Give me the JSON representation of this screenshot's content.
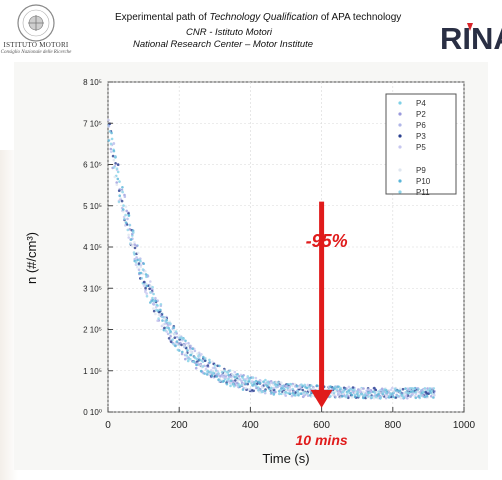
{
  "header": {
    "left_logo_text": "ISTITUTO MOTORI",
    "left_logo_subtext": "Consiglio Nazionale delle Ricerche",
    "title_prefix": "Experimental path of ",
    "title_italic": "Technology Qualification",
    "title_suffix": " of APA technology",
    "line2": "CNR - Istituto Motori",
    "line3": "National Research Center – Motor Institute",
    "right_logo": "RINA",
    "brand_red": "#d8242a"
  },
  "chart_data": {
    "type": "scatter",
    "xlabel": "Time (s)",
    "ylabel": "n (#/cm³)",
    "xlim": [
      0,
      1000
    ],
    "ylim": [
      0,
      8
    ],
    "y_scale_note": "×10⁵ scale shown by ticks",
    "x_ticks": [
      "0",
      "200",
      "400",
      "600",
      "800",
      "1000"
    ],
    "y_ticks": [
      "0 10⁰",
      "1 10⁵",
      "2 10⁵",
      "3 10⁵",
      "4 10⁵",
      "5 10⁵",
      "6 10⁵",
      "7 10⁵",
      "8 10⁵"
    ],
    "legend": [
      "P4",
      "P2",
      "P6",
      "P3",
      "P5",
      "P9",
      "P10",
      "P11"
    ],
    "legend_position": "top-right",
    "series_colors": [
      "#7fd0e6",
      "#9a9adc",
      "#b0b6e8",
      "#2a3f8f",
      "#c7c7ef",
      "#dfe6f0",
      "#5ab5d8",
      "#8fd3e8"
    ],
    "decay_model": {
      "y0": 7.0,
      "tau": 120,
      "floor": 0.45,
      "t_end": 920
    },
    "annotations": {
      "reduction": "-95%",
      "time_mark": "10 mins",
      "arrow_x": 600,
      "arrow_top_y": 5.1,
      "arrow_bottom_y": 0.1,
      "color": "#e01b1b"
    }
  }
}
